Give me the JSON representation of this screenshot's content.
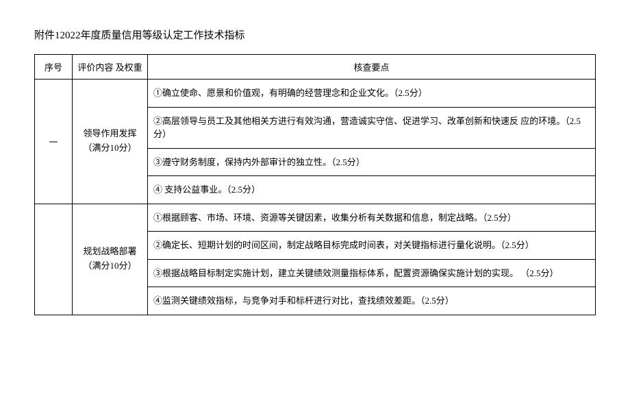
{
  "title": "附件12022年度质量信用等级认定工作技术指标",
  "headers": {
    "seq": "序号",
    "weight": "评价内容 及权重",
    "check": "核查要点"
  },
  "sections": [
    {
      "seq": "一",
      "weight_line1": "领导作用发挥",
      "weight_line2": "（满分10分）",
      "items": [
        "①确立使命、愿景和价值观，有明确的经营理念和企业文化。（2.5分）",
        "②高层领导与员工及其他相关方进行有效沟通，营造诚实守信、促进学习、改革创新和快速反 应的环境。（2.5分）",
        "③遵守财务制度，保持内外部审计的独立性。（2.5分）",
        "④ 支持公益事业。（2.5分）"
      ]
    },
    {
      "seq": "",
      "weight_line1": "规划战略部署",
      "weight_line2": "（满分10分）",
      "items": [
        "①根据顾客、市场、环境、资源等关键因素，收集分析有关数据和信息，制定战略。（2.5分）",
        "②确定长、短期计划的时间区间，制定战略目标完成时间表，对关键指标进行量化说明。（2.5分）",
        "③根据战略目标制定实施计划，建立关键绩效测量指标体系，配置资源确保实施计划的实现。 （2.5分）",
        "④监测关键绩效指标，与竞争对手和标杆进行对比，查找绩效差距。（2.5分）"
      ]
    }
  ],
  "styling": {
    "background_color": "#ffffff",
    "border_color": "#000000",
    "text_color": "#000000",
    "title_fontsize": 15,
    "cell_fontsize": 13,
    "col_widths": {
      "seq": 55,
      "weight": 110
    }
  }
}
